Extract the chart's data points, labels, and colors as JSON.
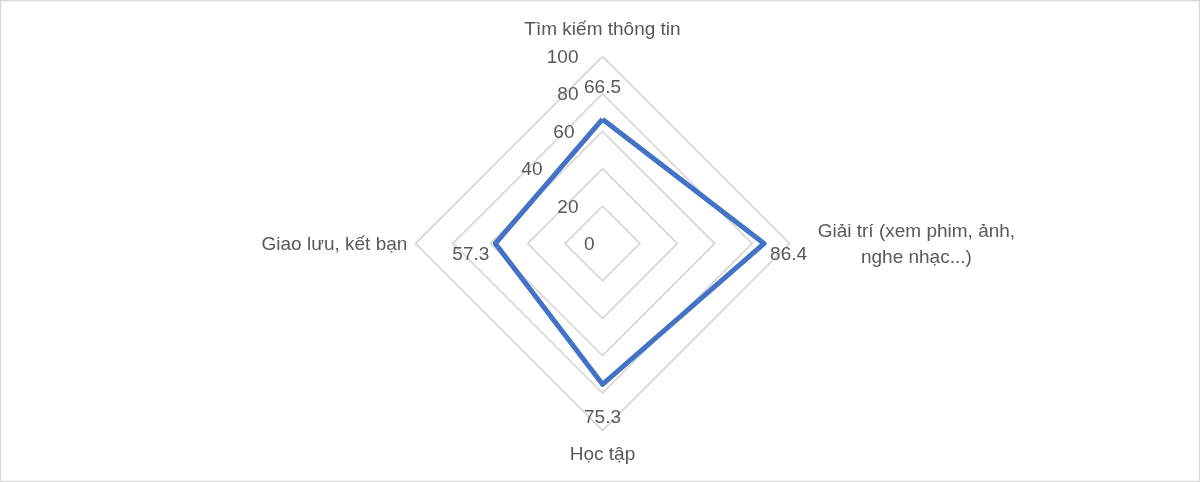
{
  "chart_data": {
    "type": "radar",
    "categories": [
      "Tìm kiếm thông tin",
      "Giải trí (xem phim, ảnh, nghe nhạc...)",
      "Học tập",
      "Giao lưu, kết bạn"
    ],
    "series": [
      {
        "color": "#4472c4",
        "values": [
          66.5,
          86.4,
          75.3,
          57.3
        ]
      }
    ],
    "ylim": [
      0,
      100
    ],
    "yticks": [
      0,
      20,
      40,
      60,
      80,
      100
    ],
    "data_labels": true,
    "grid": true,
    "line_style": "solid"
  }
}
